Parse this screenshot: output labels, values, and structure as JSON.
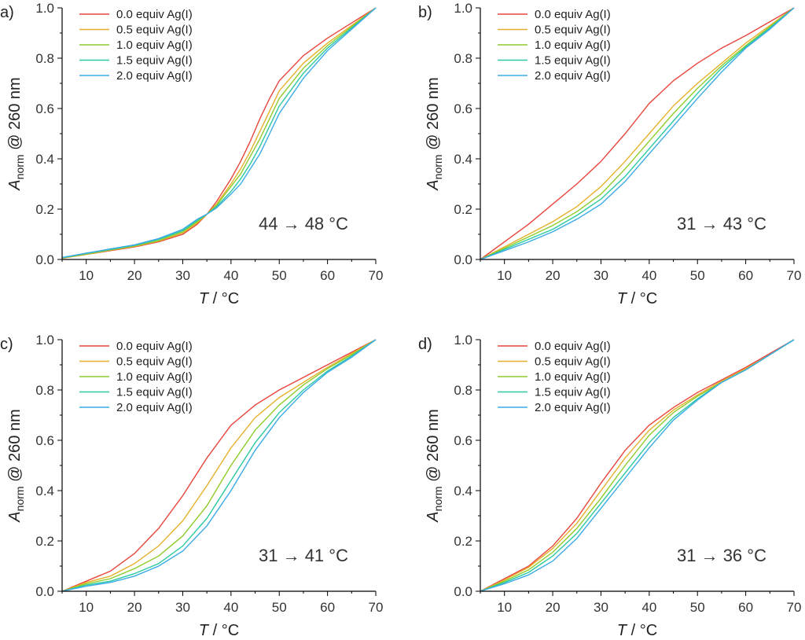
{
  "chart_data": [
    {
      "type": "line",
      "panel_label": "a)",
      "xlabel": "T / °C",
      "ylabel_main": "A",
      "ylabel_sub": "norm",
      "ylabel_rest": " @ 260 nm",
      "xlim": [
        5,
        70
      ],
      "ylim": [
        0,
        1.0
      ],
      "xticks": [
        10,
        20,
        30,
        40,
        50,
        60,
        70
      ],
      "yticks": [
        0.0,
        0.2,
        0.4,
        0.6,
        0.8,
        1.0
      ],
      "grid": false,
      "legend_position": "top-left",
      "annotation": "44 → 48 °C",
      "series": [
        {
          "name": "0.0 equiv  Ag(I)",
          "color": "#e8453c",
          "x": [
            5,
            10,
            15,
            20,
            25,
            30,
            33,
            35,
            37,
            40,
            42,
            44,
            46,
            48,
            50,
            55,
            60,
            65,
            70
          ],
          "y": [
            0.005,
            0.02,
            0.035,
            0.05,
            0.07,
            0.1,
            0.14,
            0.18,
            0.23,
            0.32,
            0.39,
            0.47,
            0.56,
            0.64,
            0.71,
            0.81,
            0.88,
            0.94,
            1.0
          ]
        },
        {
          "name": "0.5 equiv  Ag(I)",
          "color": "#e6b02b",
          "x": [
            5,
            10,
            15,
            20,
            25,
            30,
            33,
            35,
            37,
            40,
            42,
            44,
            46,
            48,
            50,
            55,
            60,
            65,
            70
          ],
          "y": [
            0.005,
            0.02,
            0.037,
            0.052,
            0.073,
            0.105,
            0.145,
            0.18,
            0.22,
            0.3,
            0.36,
            0.43,
            0.51,
            0.59,
            0.67,
            0.78,
            0.86,
            0.93,
            1.0
          ]
        },
        {
          "name": "1.0 equiv  Ag(I)",
          "color": "#8fcc2a",
          "x": [
            5,
            10,
            15,
            20,
            25,
            30,
            33,
            35,
            37,
            40,
            42,
            44,
            46,
            48,
            50,
            55,
            60,
            65,
            70
          ],
          "y": [
            0.006,
            0.022,
            0.038,
            0.054,
            0.075,
            0.11,
            0.15,
            0.18,
            0.215,
            0.29,
            0.34,
            0.41,
            0.48,
            0.56,
            0.64,
            0.76,
            0.85,
            0.925,
            1.0
          ]
        },
        {
          "name": "1.5 equiv  Ag(I)",
          "color": "#2ac9a0",
          "x": [
            5,
            10,
            15,
            20,
            25,
            30,
            33,
            35,
            37,
            40,
            42,
            44,
            46,
            48,
            50,
            55,
            60,
            65,
            70
          ],
          "y": [
            0.007,
            0.024,
            0.04,
            0.056,
            0.08,
            0.115,
            0.155,
            0.18,
            0.21,
            0.27,
            0.32,
            0.38,
            0.45,
            0.53,
            0.61,
            0.74,
            0.84,
            0.92,
            1.0
          ]
        },
        {
          "name": "2.0 equiv  Ag(I)",
          "color": "#3aabe8",
          "x": [
            5,
            10,
            15,
            20,
            25,
            30,
            33,
            35,
            37,
            40,
            42,
            44,
            46,
            48,
            50,
            55,
            60,
            65,
            70
          ],
          "y": [
            0.008,
            0.025,
            0.042,
            0.058,
            0.083,
            0.12,
            0.16,
            0.18,
            0.205,
            0.26,
            0.3,
            0.36,
            0.42,
            0.5,
            0.58,
            0.72,
            0.83,
            0.915,
            1.0
          ]
        }
      ]
    },
    {
      "type": "line",
      "panel_label": "b)",
      "xlabel": "T / °C",
      "ylabel_main": "A",
      "ylabel_sub": "norm",
      "ylabel_rest": " @ 260 nm",
      "xlim": [
        5,
        70
      ],
      "ylim": [
        0,
        1.0
      ],
      "xticks": [
        10,
        20,
        30,
        40,
        50,
        60,
        70
      ],
      "yticks": [
        0.0,
        0.2,
        0.4,
        0.6,
        0.8,
        1.0
      ],
      "grid": false,
      "legend_position": "top-left",
      "annotation": "31 → 43 °C",
      "series": [
        {
          "name": "0.0 equiv  Ag(I)",
          "color": "#e8453c",
          "x": [
            5,
            10,
            15,
            20,
            25,
            30,
            35,
            40,
            45,
            50,
            55,
            60,
            65,
            70
          ],
          "y": [
            0.0,
            0.07,
            0.14,
            0.22,
            0.3,
            0.39,
            0.5,
            0.62,
            0.71,
            0.78,
            0.84,
            0.89,
            0.945,
            1.0
          ]
        },
        {
          "name": "0.5 equiv  Ag(I)",
          "color": "#e6b02b",
          "x": [
            5,
            10,
            15,
            20,
            25,
            30,
            35,
            40,
            45,
            50,
            55,
            60,
            65,
            70
          ],
          "y": [
            0.0,
            0.05,
            0.1,
            0.15,
            0.21,
            0.29,
            0.39,
            0.5,
            0.61,
            0.7,
            0.78,
            0.86,
            0.93,
            1.0
          ]
        },
        {
          "name": "1.0 equiv  Ag(I)",
          "color": "#8fcc2a",
          "x": [
            5,
            10,
            15,
            20,
            25,
            30,
            35,
            40,
            45,
            50,
            55,
            60,
            65,
            70
          ],
          "y": [
            0.0,
            0.045,
            0.09,
            0.135,
            0.19,
            0.26,
            0.36,
            0.47,
            0.58,
            0.68,
            0.77,
            0.85,
            0.925,
            1.0
          ]
        },
        {
          "name": "1.5 equiv  Ag(I)",
          "color": "#2ac9a0",
          "x": [
            5,
            10,
            15,
            20,
            25,
            30,
            35,
            40,
            45,
            50,
            55,
            60,
            65,
            70
          ],
          "y": [
            0.0,
            0.04,
            0.08,
            0.12,
            0.175,
            0.24,
            0.33,
            0.44,
            0.55,
            0.66,
            0.76,
            0.845,
            0.92,
            1.0
          ]
        },
        {
          "name": "2.0 equiv  Ag(I)",
          "color": "#3aabe8",
          "x": [
            5,
            10,
            15,
            20,
            25,
            30,
            35,
            40,
            45,
            50,
            55,
            60,
            65,
            70
          ],
          "y": [
            0.0,
            0.035,
            0.07,
            0.11,
            0.16,
            0.22,
            0.31,
            0.42,
            0.53,
            0.64,
            0.745,
            0.84,
            0.915,
            1.0
          ]
        }
      ]
    },
    {
      "type": "line",
      "panel_label": "c)",
      "xlabel": "T / °C",
      "ylabel_main": "A",
      "ylabel_sub": "norm",
      "ylabel_rest": " @ 260 nm",
      "xlim": [
        5,
        70
      ],
      "ylim": [
        0,
        1.0
      ],
      "xticks": [
        10,
        20,
        30,
        40,
        50,
        60,
        70
      ],
      "yticks": [
        0.0,
        0.2,
        0.4,
        0.6,
        0.8,
        1.0
      ],
      "grid": false,
      "legend_position": "top-left",
      "annotation": "31 → 41 °C",
      "series": [
        {
          "name": "0.0 equiv  Ag(I)",
          "color": "#e8453c",
          "x": [
            5,
            10,
            15,
            20,
            25,
            30,
            35,
            40,
            45,
            50,
            55,
            60,
            65,
            70
          ],
          "y": [
            0.0,
            0.04,
            0.08,
            0.15,
            0.25,
            0.38,
            0.53,
            0.66,
            0.74,
            0.8,
            0.85,
            0.9,
            0.95,
            1.0
          ]
        },
        {
          "name": "0.5 equiv  Ag(I)",
          "color": "#e6b02b",
          "x": [
            5,
            10,
            15,
            20,
            25,
            30,
            35,
            40,
            45,
            50,
            55,
            60,
            65,
            70
          ],
          "y": [
            0.0,
            0.035,
            0.06,
            0.11,
            0.18,
            0.28,
            0.42,
            0.57,
            0.69,
            0.77,
            0.83,
            0.89,
            0.945,
            1.0
          ]
        },
        {
          "name": "1.0 equiv  Ag(I)",
          "color": "#8fcc2a",
          "x": [
            5,
            10,
            15,
            20,
            25,
            30,
            35,
            40,
            45,
            50,
            55,
            60,
            65,
            70
          ],
          "y": [
            0.0,
            0.03,
            0.05,
            0.09,
            0.14,
            0.22,
            0.34,
            0.5,
            0.64,
            0.74,
            0.82,
            0.885,
            0.94,
            1.0
          ]
        },
        {
          "name": "1.5 equiv  Ag(I)",
          "color": "#2ac9a0",
          "x": [
            5,
            10,
            15,
            20,
            25,
            30,
            35,
            40,
            45,
            50,
            55,
            60,
            65,
            70
          ],
          "y": [
            0.0,
            0.025,
            0.04,
            0.07,
            0.11,
            0.18,
            0.29,
            0.44,
            0.59,
            0.71,
            0.8,
            0.875,
            0.935,
            1.0
          ]
        },
        {
          "name": "2.0 equiv  Ag(I)",
          "color": "#3aabe8",
          "x": [
            5,
            10,
            15,
            20,
            25,
            30,
            35,
            40,
            45,
            50,
            55,
            60,
            65,
            70
          ],
          "y": [
            0.0,
            0.02,
            0.035,
            0.06,
            0.1,
            0.16,
            0.26,
            0.4,
            0.56,
            0.69,
            0.79,
            0.87,
            0.93,
            1.0
          ]
        }
      ]
    },
    {
      "type": "line",
      "panel_label": "d)",
      "xlabel": "T / °C",
      "ylabel_main": "A",
      "ylabel_sub": "norm",
      "ylabel_rest": " @ 260 nm",
      "xlim": [
        5,
        70
      ],
      "ylim": [
        0,
        1.0
      ],
      "xticks": [
        10,
        20,
        30,
        40,
        50,
        60,
        70
      ],
      "yticks": [
        0.0,
        0.2,
        0.4,
        0.6,
        0.8,
        1.0
      ],
      "grid": false,
      "legend_position": "top-left",
      "annotation": "31 → 36 °C",
      "series": [
        {
          "name": "0.0 equiv  Ag(I)",
          "color": "#e8453c",
          "x": [
            5,
            10,
            15,
            20,
            25,
            30,
            35,
            40,
            45,
            50,
            55,
            60,
            65,
            70
          ],
          "y": [
            0.0,
            0.05,
            0.1,
            0.18,
            0.29,
            0.43,
            0.56,
            0.66,
            0.73,
            0.79,
            0.84,
            0.89,
            0.945,
            1.0
          ]
        },
        {
          "name": "0.5 equiv  Ag(I)",
          "color": "#e6b02b",
          "x": [
            5,
            10,
            15,
            20,
            25,
            30,
            35,
            40,
            45,
            50,
            55,
            60,
            65,
            70
          ],
          "y": [
            0.0,
            0.045,
            0.095,
            0.17,
            0.27,
            0.4,
            0.53,
            0.64,
            0.72,
            0.78,
            0.835,
            0.885,
            0.94,
            1.0
          ]
        },
        {
          "name": "1.0 equiv  Ag(I)",
          "color": "#8fcc2a",
          "x": [
            5,
            10,
            15,
            20,
            25,
            30,
            35,
            40,
            45,
            50,
            55,
            60,
            65,
            70
          ],
          "y": [
            0.0,
            0.04,
            0.085,
            0.155,
            0.25,
            0.37,
            0.5,
            0.62,
            0.71,
            0.775,
            0.83,
            0.88,
            0.94,
            1.0
          ]
        },
        {
          "name": "1.5 equiv  Ag(I)",
          "color": "#2ac9a0",
          "x": [
            5,
            10,
            15,
            20,
            25,
            30,
            35,
            40,
            45,
            50,
            55,
            60,
            65,
            70
          ],
          "y": [
            0.0,
            0.035,
            0.075,
            0.14,
            0.23,
            0.35,
            0.47,
            0.59,
            0.69,
            0.765,
            0.83,
            0.88,
            0.94,
            1.0
          ]
        },
        {
          "name": "2.0 equiv  Ag(I)",
          "color": "#3aabe8",
          "x": [
            5,
            10,
            15,
            20,
            25,
            30,
            35,
            40,
            45,
            50,
            55,
            60,
            65,
            70
          ],
          "y": [
            0.0,
            0.03,
            0.065,
            0.12,
            0.21,
            0.33,
            0.45,
            0.57,
            0.68,
            0.76,
            0.83,
            0.88,
            0.94,
            1.0
          ]
        }
      ]
    }
  ]
}
